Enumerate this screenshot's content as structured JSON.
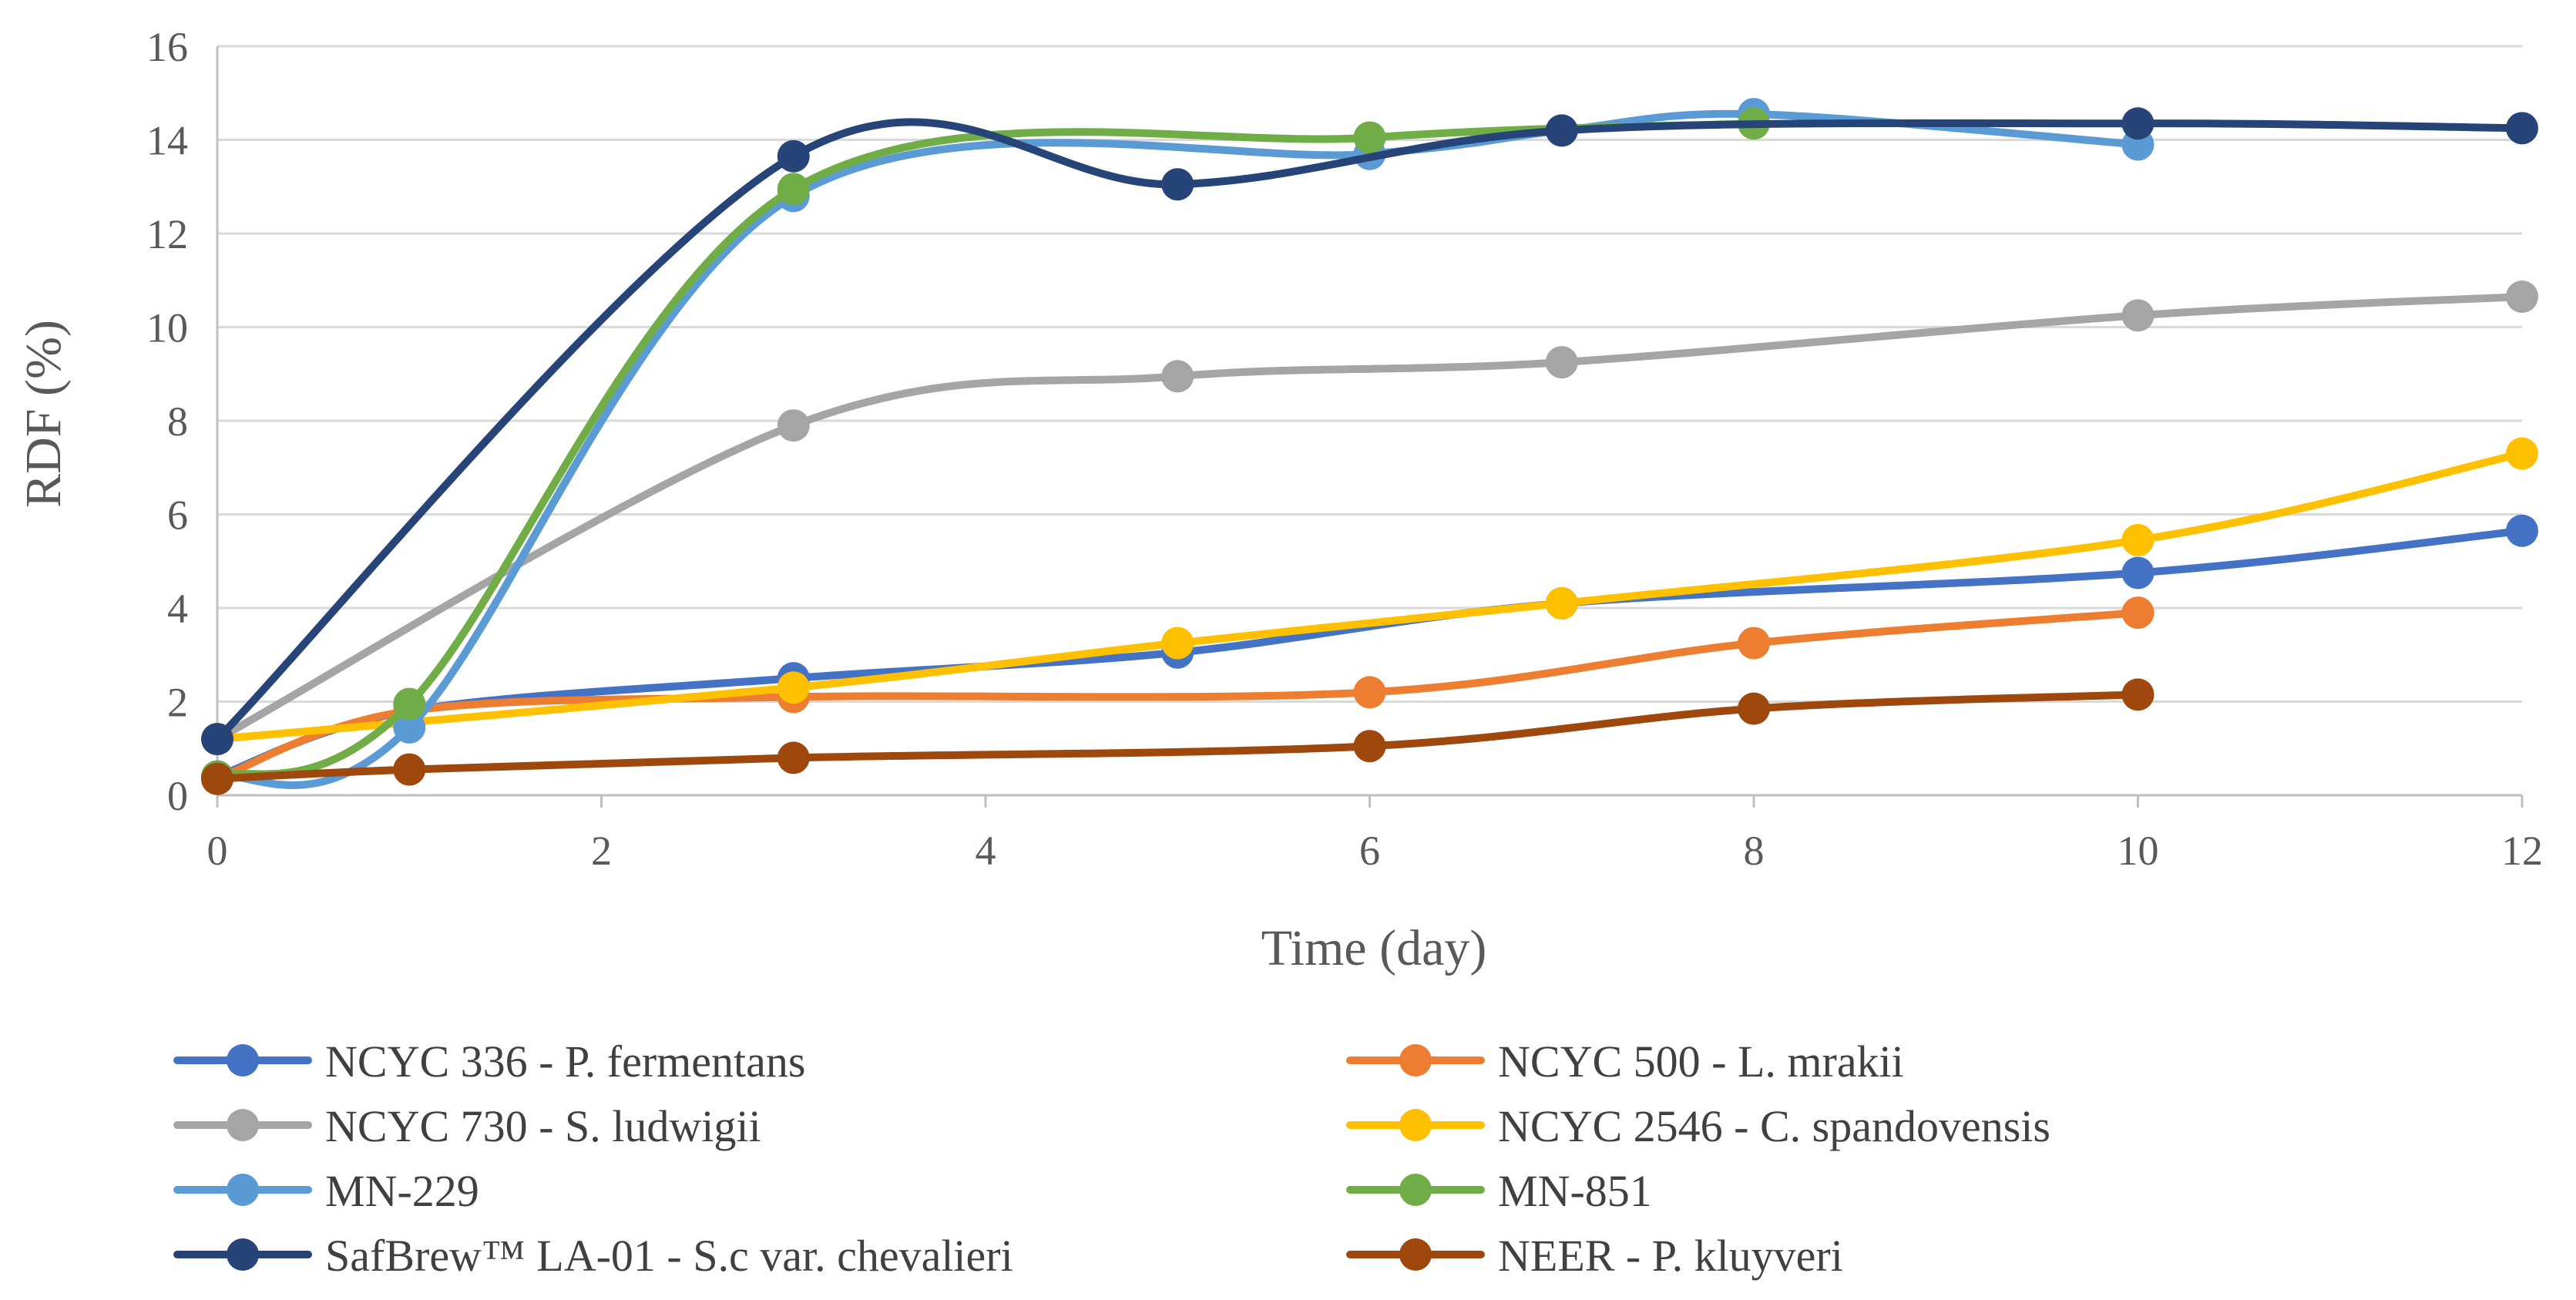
{
  "chart_data": {
    "type": "line",
    "smooth": true,
    "title": "",
    "xlabel": "Time (day)",
    "ylabel": "RDF (%)",
    "xlim": [
      0,
      12
    ],
    "ylim": [
      0,
      16
    ],
    "x_ticks": [
      0,
      2,
      4,
      6,
      8,
      10,
      12
    ],
    "y_ticks": [
      0,
      2,
      4,
      6,
      8,
      10,
      12,
      14,
      16
    ],
    "grid": "horizontal",
    "legend_position": "bottom",
    "series": [
      {
        "name": "NCYC 336 - P. fermentans",
        "color": "#4472C4",
        "x": [
          0,
          1,
          3,
          5,
          7,
          10,
          12
        ],
        "y": [
          0.4,
          1.8,
          2.5,
          3.05,
          4.1,
          4.75,
          5.65
        ]
      },
      {
        "name": "NCYC 500 - L. mrakii",
        "color": "#ED7D31",
        "x": [
          0,
          1,
          3,
          6,
          8,
          10
        ],
        "y": [
          0.35,
          1.8,
          2.1,
          2.2,
          3.25,
          3.9
        ]
      },
      {
        "name": "NCYC 730 - S. ludwigii",
        "color": "#A5A5A5",
        "x": [
          0,
          3,
          5,
          7,
          10,
          12
        ],
        "y": [
          1.2,
          7.9,
          8.95,
          9.25,
          10.25,
          10.65
        ]
      },
      {
        "name": "NCYC 2546 - C. spandovensis",
        "color": "#FFC000",
        "x": [
          0,
          3,
          5,
          7,
          10,
          12
        ],
        "y": [
          1.2,
          2.3,
          3.25,
          4.1,
          5.45,
          7.3
        ]
      },
      {
        "name": "MN-229",
        "color": "#5B9BD5",
        "x": [
          0,
          1,
          3,
          6,
          7,
          8,
          10
        ],
        "y": [
          0.4,
          1.45,
          12.8,
          13.7,
          14.2,
          14.55,
          13.9
        ]
      },
      {
        "name": "MN-851",
        "color": "#70AD47",
        "x": [
          0,
          1,
          3,
          6,
          8
        ],
        "y": [
          0.4,
          1.95,
          12.95,
          14.05,
          14.35
        ]
      },
      {
        "name": "SafBrew™ LA-01 - S.c var. chevalieri",
        "color": "#264478",
        "x": [
          0,
          3,
          5,
          7,
          10,
          12
        ],
        "y": [
          1.2,
          13.65,
          13.05,
          14.2,
          14.35,
          14.25
        ]
      },
      {
        "name": "NEER - P. kluyveri",
        "color": "#9E480E",
        "x": [
          0,
          1,
          3,
          6,
          8,
          10
        ],
        "y": [
          0.35,
          0.55,
          0.8,
          1.05,
          1.85,
          2.15
        ]
      }
    ]
  }
}
